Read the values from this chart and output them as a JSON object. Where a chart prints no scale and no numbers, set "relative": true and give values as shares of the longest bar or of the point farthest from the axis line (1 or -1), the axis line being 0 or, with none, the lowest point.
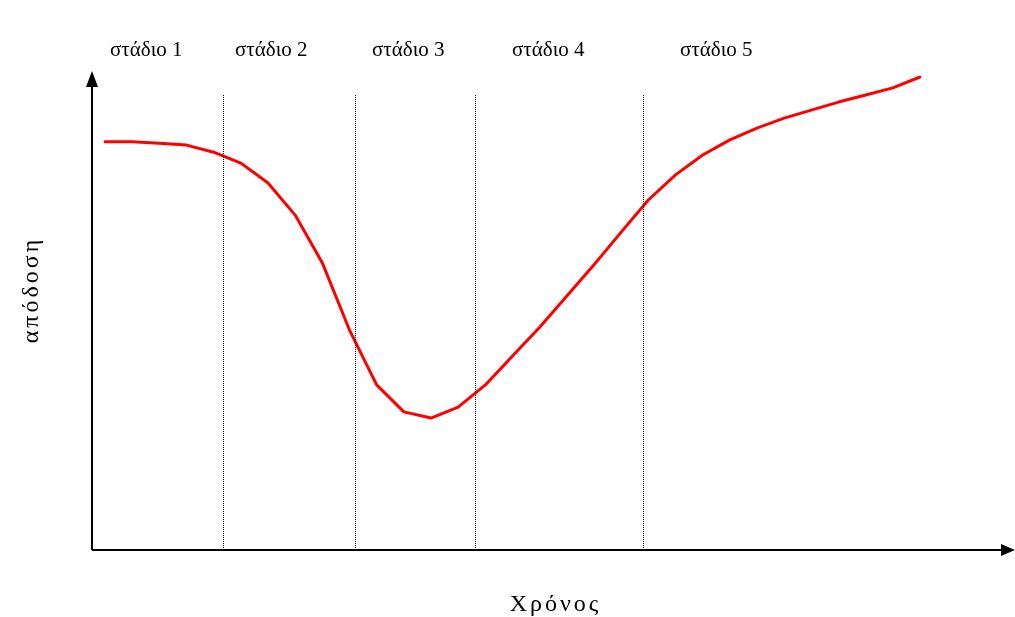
{
  "chart_data": {
    "type": "line",
    "relative": true,
    "xlabel": "Χρόνος",
    "ylabel": "απόδοση",
    "legend": false,
    "marker": "none",
    "line_style": "solid",
    "annotations": [
      "στάδιο 1",
      "στάδιο 2",
      "στάδιο 3",
      "στάδιο 4",
      "στάδιο 5"
    ],
    "categories": [
      null,
      null,
      null,
      null,
      null,
      null,
      null,
      null,
      null,
      null,
      null,
      null,
      null,
      null,
      null,
      null,
      null,
      null,
      null,
      null,
      null,
      null,
      null,
      null,
      null,
      null,
      null,
      null,
      null,
      null,
      null
    ],
    "series": [
      {
        "color": "#ff0000",
        "values": [
          0.863,
          0.863,
          0.86,
          0.856,
          0.841,
          0.818,
          0.776,
          0.708,
          0.607,
          0.465,
          0.349,
          0.292,
          0.279,
          0.302,
          0.349,
          0.41,
          0.471,
          0.537,
          0.603,
          0.672,
          0.74,
          0.793,
          0.835,
          0.867,
          0.892,
          0.913,
          0.93,
          0.947,
          0.962,
          0.977,
          1.0
        ]
      }
    ]
  }
}
